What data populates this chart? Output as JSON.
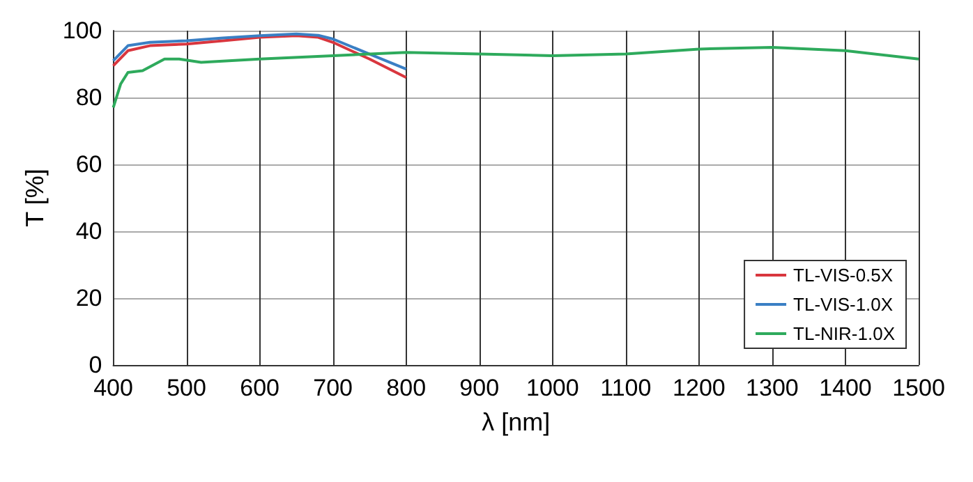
{
  "chart_data": {
    "type": "line",
    "xlabel": "λ [nm]",
    "ylabel": "T [%]",
    "xlim": [
      400,
      1500
    ],
    "xticks": [
      400,
      500,
      600,
      700,
      800,
      900,
      1000,
      1100,
      1200,
      1300,
      1400,
      1500
    ],
    "ylim": [
      0,
      100
    ],
    "yticks": [
      0,
      20,
      40,
      60,
      80,
      100
    ],
    "grid": true,
    "legend": "bottom right",
    "marker": "none",
    "line_style": "solid",
    "series": [
      {
        "name": "TL-VIS-0.5X",
        "color": "#d9363e",
        "x": [
          400,
          420,
          450,
          500,
          550,
          600,
          650,
          680,
          700,
          750,
          800
        ],
        "values": [
          89.5,
          94,
          95.5,
          96,
          97,
          98,
          98.5,
          98,
          96.5,
          91.5,
          86
        ]
      },
      {
        "name": "TL-VIS-1.0X",
        "color": "#3a7fc4",
        "x": [
          400,
          420,
          450,
          500,
          550,
          600,
          650,
          680,
          700,
          750,
          800
        ],
        "values": [
          91,
          95.5,
          96.5,
          97,
          97.8,
          98.5,
          99,
          98.6,
          97.5,
          93,
          88.5
        ]
      },
      {
        "name": "TL-NIR-1.0X",
        "color": "#2eaa5c",
        "x": [
          400,
          410,
          420,
          440,
          470,
          490,
          520,
          600,
          700,
          800,
          900,
          1000,
          1100,
          1200,
          1300,
          1400,
          1500
        ],
        "values": [
          77,
          84,
          87.5,
          88,
          91.5,
          91.5,
          90.5,
          91.5,
          92.5,
          93.5,
          93,
          92.5,
          93,
          94.5,
          95,
          94,
          91.5
        ]
      }
    ]
  }
}
